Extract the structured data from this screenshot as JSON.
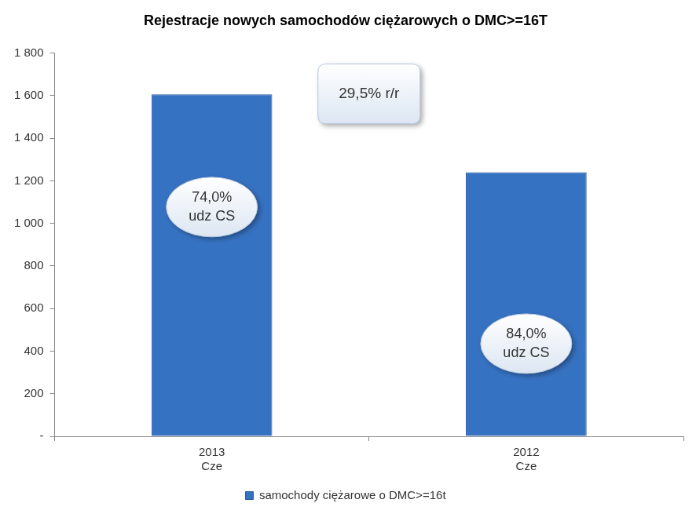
{
  "chart_data": {
    "type": "bar",
    "title": "Rejestracje nowych samochodów ciężarowych o DMC>=16T",
    "categories": [
      [
        "2013",
        "Cze"
      ],
      [
        "2012",
        "Cze"
      ]
    ],
    "series": [
      {
        "name": "samochody ciężarowe o DMC>=16t",
        "color": "#3672c2",
        "values": [
          1606,
          1240
        ]
      }
    ],
    "ylim": [
      0,
      1800
    ],
    "yticks": [
      {
        "value": 0,
        "label": "-"
      },
      200,
      400,
      600,
      800,
      {
        "value": 1000,
        "label": "1 000"
      },
      {
        "value": 1200,
        "label": "1 200"
      },
      {
        "value": 1400,
        "label": "1 400"
      },
      {
        "value": 1600,
        "label": "1 600"
      },
      {
        "value": 1800,
        "label": "1 800"
      }
    ],
    "grid": false,
    "legend": "bottom",
    "annotations": {
      "change": "29,5% r/r",
      "bar_notes": [
        [
          "74,0%",
          "udz CS"
        ],
        [
          "84,0%",
          "udz CS"
        ]
      ]
    }
  }
}
